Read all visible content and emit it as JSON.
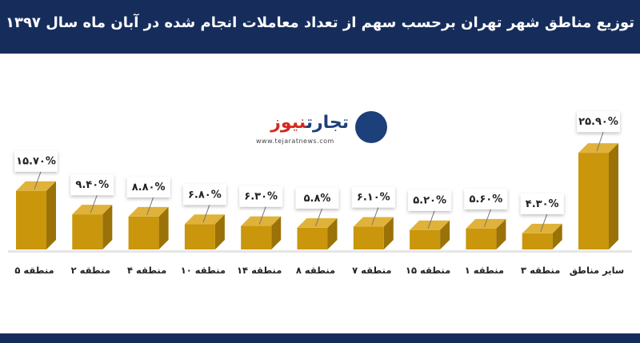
{
  "header": {
    "title": "توزیع مناطق شهر تهران برحسب سهم از تعداد معاملات انجام شده در آبان ماه سال ۱۳۹۷"
  },
  "logo": {
    "name_part1": "تجارت",
    "name_part2": "نیوز",
    "url": "www.tejaratnews.com"
  },
  "colors": {
    "header_bg": "#162d5c",
    "bar_front": "#c9960c",
    "bar_top": "#e0b23a",
    "bar_side": "#9a7208"
  },
  "chart_data": {
    "type": "bar",
    "categories": [
      "منطقه ۵",
      "منطقه ۲",
      "منطقه ۴",
      "منطقه ۱۰",
      "منطقه ۱۴",
      "منطقه ۸",
      "منطقه ۷",
      "منطقه ۱۵",
      "منطقه ۱",
      "منطقه ۳",
      "سایر مناطق"
    ],
    "values": [
      15.7,
      9.4,
      8.8,
      6.8,
      6.3,
      5.8,
      6.1,
      5.2,
      5.6,
      4.3,
      25.9
    ],
    "data_labels": [
      "۱۵.۷۰%",
      "۹.۴۰%",
      "۸.۸۰%",
      "۶.۸۰%",
      "۶.۳۰%",
      "۵.۸%",
      "۶.۱۰%",
      "۵.۲۰%",
      "۵.۶۰%",
      "۴.۳۰%",
      "۲۵.۹۰%"
    ],
    "ylim": [
      0,
      30
    ],
    "grid": false
  }
}
